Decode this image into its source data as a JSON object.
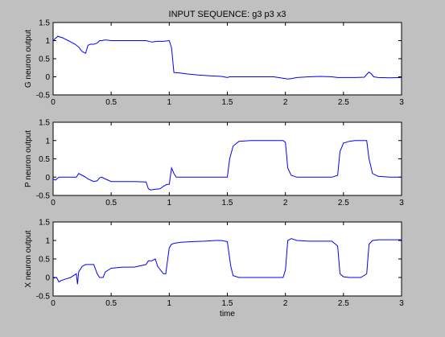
{
  "figure": {
    "background": "#c0c0c0",
    "axes_background": "#ffffff",
    "line_color": "#0000ff"
  },
  "chart_data": [
    {
      "type": "line",
      "title": "INPUT SEQUENCE: g3 p3 x3",
      "xlabel": "",
      "ylabel": "G neuron output",
      "xlim": [
        0,
        3
      ],
      "ylim": [
        -0.5,
        1.5
      ],
      "xticks": [
        "0",
        "0.5",
        "1",
        "1.5",
        "2",
        "2.5",
        "3"
      ],
      "yticks": [
        "-0.5",
        "0",
        "0.5",
        "1",
        "1.5"
      ],
      "series": [
        {
          "x": [
            0,
            0.02,
            0.04,
            0.06,
            0.08,
            0.1,
            0.13,
            0.16,
            0.19,
            0.22,
            0.25,
            0.28,
            0.3,
            0.32,
            0.35,
            0.38,
            0.4,
            0.42,
            0.45,
            0.5,
            0.6,
            0.7,
            0.8,
            0.85,
            0.9,
            0.95,
            1.0,
            1.02,
            1.04,
            1.08,
            1.15,
            1.25,
            1.35,
            1.45,
            1.5,
            1.52,
            1.55,
            1.7,
            1.8,
            1.9,
            2.0,
            2.02,
            2.05,
            2.1,
            2.2,
            2.3,
            2.4,
            2.45,
            2.5,
            2.6,
            2.68,
            2.71,
            2.72,
            2.74,
            2.76,
            2.8,
            2.9,
            3.0
          ],
          "y": [
            1.0,
            1.06,
            1.12,
            1.1,
            1.08,
            1.05,
            1.0,
            0.95,
            0.9,
            0.82,
            0.7,
            0.65,
            0.87,
            0.9,
            0.9,
            0.93,
            1.0,
            1.0,
            1.02,
            1.0,
            1.0,
            1.0,
            1.0,
            0.96,
            0.98,
            0.98,
            1.0,
            0.8,
            0.12,
            0.11,
            0.08,
            0.05,
            0.03,
            0.01,
            -0.02,
            0.0,
            0.0,
            0.0,
            0.0,
            0.0,
            -0.05,
            -0.06,
            -0.05,
            -0.02,
            0.0,
            0.01,
            0.0,
            -0.02,
            -0.02,
            -0.02,
            -0.01,
            0.1,
            0.13,
            0.08,
            0.0,
            -0.02,
            -0.03,
            -0.02
          ]
        }
      ]
    },
    {
      "type": "line",
      "title": "",
      "xlabel": "",
      "ylabel": "P neuron output",
      "xlim": [
        0,
        3
      ],
      "ylim": [
        -0.5,
        1.5
      ],
      "xticks": [
        "0",
        "0.5",
        "1",
        "1.5",
        "2",
        "2.5",
        "3"
      ],
      "yticks": [
        "-0.5",
        "0",
        "0.5",
        "1",
        "1.5"
      ],
      "series": [
        {
          "x": [
            0,
            0.02,
            0.05,
            0.1,
            0.15,
            0.2,
            0.22,
            0.25,
            0.28,
            0.3,
            0.35,
            0.38,
            0.4,
            0.42,
            0.45,
            0.5,
            0.6,
            0.7,
            0.8,
            0.82,
            0.84,
            0.88,
            0.92,
            0.95,
            0.98,
            1.0,
            1.02,
            1.04,
            1.06,
            1.1,
            1.2,
            1.3,
            1.4,
            1.5,
            1.52,
            1.55,
            1.6,
            1.7,
            1.8,
            1.9,
            1.98,
            2.0,
            2.02,
            2.05,
            2.1,
            2.2,
            2.3,
            2.4,
            2.45,
            2.47,
            2.5,
            2.55,
            2.6,
            2.7,
            2.72,
            2.75,
            2.8,
            2.9,
            3.0
          ],
          "y": [
            -0.05,
            -0.08,
            0.0,
            0.0,
            0.0,
            0.0,
            0.1,
            0.05,
            0.0,
            -0.05,
            -0.12,
            -0.1,
            -0.02,
            0.0,
            -0.05,
            -0.12,
            -0.12,
            -0.12,
            -0.13,
            -0.32,
            -0.35,
            -0.33,
            -0.32,
            -0.25,
            -0.2,
            -0.2,
            0.25,
            0.1,
            0.0,
            0.0,
            0.0,
            0.0,
            0.0,
            0.0,
            0.5,
            0.85,
            0.98,
            1.0,
            1.0,
            1.0,
            1.0,
            0.95,
            0.25,
            0.05,
            0.0,
            0.0,
            0.0,
            0.0,
            0.05,
            0.7,
            0.93,
            0.98,
            1.0,
            1.0,
            0.5,
            0.1,
            0.02,
            0.0,
            0.0
          ]
        }
      ]
    },
    {
      "type": "line",
      "title": "",
      "xlabel": "time",
      "ylabel": "X neuron output",
      "xlim": [
        0,
        3
      ],
      "ylim": [
        -0.5,
        1.5
      ],
      "xticks": [
        "0",
        "0.5",
        "1",
        "1.5",
        "2",
        "2.5",
        "3"
      ],
      "yticks": [
        "-0.5",
        "0",
        "0.5",
        "1",
        "1.5"
      ],
      "series": [
        {
          "x": [
            0,
            0.03,
            0.05,
            0.07,
            0.1,
            0.15,
            0.2,
            0.21,
            0.22,
            0.25,
            0.28,
            0.3,
            0.35,
            0.38,
            0.4,
            0.43,
            0.45,
            0.5,
            0.6,
            0.7,
            0.8,
            0.82,
            0.85,
            0.88,
            0.9,
            0.95,
            0.97,
            1.0,
            1.02,
            1.05,
            1.1,
            1.2,
            1.3,
            1.4,
            1.45,
            1.5,
            1.53,
            1.55,
            1.6,
            1.7,
            1.8,
            1.9,
            1.98,
            2.0,
            2.02,
            2.05,
            2.1,
            2.2,
            2.3,
            2.4,
            2.45,
            2.47,
            2.5,
            2.55,
            2.6,
            2.65,
            2.7,
            2.72,
            2.75,
            2.8,
            2.9,
            3.0
          ],
          "y": [
            -0.02,
            0.0,
            -0.12,
            -0.08,
            -0.05,
            0.0,
            0.1,
            -0.18,
            0.15,
            0.3,
            0.35,
            0.35,
            0.35,
            0.1,
            0.0,
            0.0,
            0.15,
            0.25,
            0.28,
            0.28,
            0.35,
            0.45,
            0.45,
            0.5,
            0.3,
            0.1,
            0.1,
            0.8,
            0.9,
            0.93,
            0.95,
            0.97,
            0.98,
            1.0,
            1.0,
            0.97,
            0.3,
            0.05,
            0.0,
            0.0,
            0.0,
            0.0,
            0.0,
            0.2,
            1.0,
            1.05,
            1.0,
            0.98,
            0.98,
            0.98,
            0.85,
            0.1,
            0.02,
            0.0,
            0.0,
            0.0,
            0.1,
            0.9,
            1.0,
            1.02,
            1.02,
            1.02
          ]
        }
      ]
    }
  ]
}
